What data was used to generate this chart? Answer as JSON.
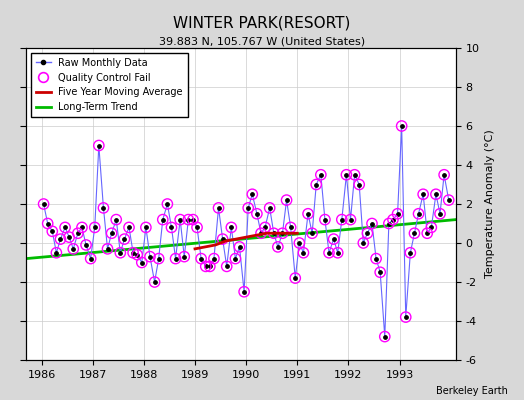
{
  "title": "WINTER PARK(RESORT)",
  "subtitle": "39.883 N, 105.767 W (United States)",
  "ylabel": "Temperature Anomaly (°C)",
  "credit": "Berkeley Earth",
  "xlim": [
    1985.7,
    1994.1
  ],
  "ylim": [
    -6,
    10
  ],
  "yticks": [
    -6,
    -4,
    -2,
    0,
    2,
    4,
    6,
    8,
    10
  ],
  "xticks": [
    1986,
    1987,
    1988,
    1989,
    1990,
    1991,
    1992,
    1993
  ],
  "fig_bg_color": "#d8d8d8",
  "plot_bg": "#ffffff",
  "raw_line_color": "#6666ff",
  "raw_dot_color": "#000000",
  "qc_color": "#ff00ff",
  "moving_avg_color": "#cc0000",
  "trend_color": "#00bb00",
  "raw_monthly_x": [
    1986.04,
    1986.12,
    1986.21,
    1986.29,
    1986.37,
    1986.46,
    1986.54,
    1986.62,
    1986.71,
    1986.79,
    1986.87,
    1986.96,
    1987.04,
    1987.12,
    1987.21,
    1987.29,
    1987.37,
    1987.46,
    1987.54,
    1987.62,
    1987.71,
    1987.79,
    1987.87,
    1987.96,
    1988.04,
    1988.12,
    1988.21,
    1988.29,
    1988.37,
    1988.46,
    1988.54,
    1988.62,
    1988.71,
    1988.79,
    1988.87,
    1988.96,
    1989.04,
    1989.12,
    1989.21,
    1989.29,
    1989.37,
    1989.46,
    1989.54,
    1989.62,
    1989.71,
    1989.79,
    1989.87,
    1989.96,
    1990.04,
    1990.12,
    1990.21,
    1990.29,
    1990.37,
    1990.46,
    1990.54,
    1990.62,
    1990.71,
    1990.79,
    1990.87,
    1990.96,
    1991.04,
    1991.12,
    1991.21,
    1991.29,
    1991.37,
    1991.46,
    1991.54,
    1991.62,
    1991.71,
    1991.79,
    1991.87,
    1991.96,
    1992.04,
    1992.12,
    1992.21,
    1992.29,
    1992.37,
    1992.46,
    1992.54,
    1992.62,
    1992.71,
    1992.79,
    1992.87,
    1992.96,
    1993.04,
    1993.12,
    1993.21,
    1993.29,
    1993.37,
    1993.46,
    1993.54,
    1993.62,
    1993.71,
    1993.79,
    1993.87,
    1993.96
  ],
  "raw_monthly_y": [
    2.0,
    1.0,
    0.6,
    -0.5,
    0.2,
    0.8,
    0.3,
    -0.3,
    0.5,
    0.8,
    -0.1,
    -0.8,
    0.8,
    5.0,
    1.8,
    -0.3,
    0.5,
    1.2,
    -0.5,
    0.2,
    0.8,
    -0.5,
    -0.6,
    -1.0,
    0.8,
    -0.7,
    -2.0,
    -0.8,
    1.2,
    2.0,
    0.8,
    -0.8,
    1.2,
    -0.7,
    1.2,
    1.2,
    0.8,
    -0.8,
    -1.2,
    -1.2,
    -0.8,
    1.8,
    0.2,
    -1.2,
    0.8,
    -0.8,
    -0.2,
    -2.5,
    1.8,
    2.5,
    1.5,
    0.5,
    0.8,
    1.8,
    0.5,
    -0.2,
    0.5,
    2.2,
    0.8,
    -1.8,
    0.0,
    -0.5,
    1.5,
    0.5,
    3.0,
    3.5,
    1.2,
    -0.5,
    0.2,
    -0.5,
    1.2,
    3.5,
    1.2,
    3.5,
    3.0,
    0.0,
    0.5,
    1.0,
    -0.8,
    -1.5,
    -4.8,
    1.0,
    1.2,
    1.5,
    6.0,
    -3.8,
    -0.5,
    0.5,
    1.5,
    2.5,
    0.5,
    0.8,
    2.5,
    1.5,
    3.5,
    2.2
  ],
  "qc_fail_x": [
    1986.04,
    1986.12,
    1986.21,
    1986.29,
    1986.37,
    1986.46,
    1986.54,
    1986.62,
    1986.71,
    1986.79,
    1986.87,
    1986.96,
    1987.04,
    1987.12,
    1987.21,
    1987.29,
    1987.37,
    1987.46,
    1987.54,
    1987.62,
    1987.71,
    1987.79,
    1987.87,
    1987.96,
    1988.04,
    1988.12,
    1988.21,
    1988.29,
    1988.37,
    1988.46,
    1988.54,
    1988.62,
    1988.71,
    1988.79,
    1988.87,
    1988.96,
    1989.04,
    1989.12,
    1989.21,
    1989.29,
    1989.37,
    1989.46,
    1989.54,
    1989.62,
    1989.71,
    1989.79,
    1989.87,
    1989.96,
    1990.04,
    1990.12,
    1990.21,
    1990.29,
    1990.37,
    1990.46,
    1990.54,
    1990.62,
    1990.71,
    1990.79,
    1990.87,
    1990.96,
    1991.04,
    1991.12,
    1991.21,
    1991.29,
    1991.37,
    1991.46,
    1991.54,
    1991.62,
    1991.71,
    1991.79,
    1991.87,
    1991.96,
    1992.04,
    1992.12,
    1992.21,
    1992.29,
    1992.37,
    1992.46,
    1992.54,
    1992.62,
    1992.71,
    1992.79,
    1992.87,
    1992.96,
    1993.04,
    1993.12,
    1993.21,
    1993.29,
    1993.37,
    1993.46,
    1993.54,
    1993.62,
    1993.71,
    1993.79,
    1993.87,
    1993.96
  ],
  "qc_fail_y": [
    2.0,
    1.0,
    0.6,
    -0.5,
    0.2,
    0.8,
    0.3,
    -0.3,
    0.5,
    0.8,
    -0.1,
    -0.8,
    0.8,
    5.0,
    1.8,
    -0.3,
    0.5,
    1.2,
    -0.5,
    0.2,
    0.8,
    -0.5,
    -0.6,
    -1.0,
    0.8,
    -0.7,
    -2.0,
    -0.8,
    1.2,
    2.0,
    0.8,
    -0.8,
    1.2,
    -0.7,
    1.2,
    1.2,
    0.8,
    -0.8,
    -1.2,
    -1.2,
    -0.8,
    1.8,
    0.2,
    -1.2,
    0.8,
    -0.8,
    -0.2,
    -2.5,
    1.8,
    2.5,
    1.5,
    0.5,
    0.8,
    1.8,
    0.5,
    -0.2,
    0.5,
    2.2,
    0.8,
    -1.8,
    0.0,
    -0.5,
    1.5,
    0.5,
    3.0,
    3.5,
    1.2,
    -0.5,
    0.2,
    -0.5,
    1.2,
    3.5,
    1.2,
    3.5,
    3.0,
    0.0,
    0.5,
    1.0,
    -0.8,
    -1.5,
    -4.8,
    1.0,
    1.2,
    1.5,
    6.0,
    -3.8,
    -0.5,
    0.5,
    1.5,
    2.5,
    0.5,
    0.8,
    2.5,
    1.5,
    3.5,
    2.2
  ],
  "moving_avg_x": [
    1989.0,
    1989.2,
    1989.4,
    1989.6,
    1989.8,
    1990.0,
    1990.2,
    1990.4,
    1990.6,
    1990.8,
    1991.0
  ],
  "moving_avg_y": [
    -0.3,
    -0.2,
    -0.1,
    0.1,
    0.2,
    0.3,
    0.4,
    0.5,
    0.5,
    0.5,
    0.5
  ],
  "trend_x": [
    1985.7,
    1994.1
  ],
  "trend_y": [
    -0.8,
    1.2
  ]
}
